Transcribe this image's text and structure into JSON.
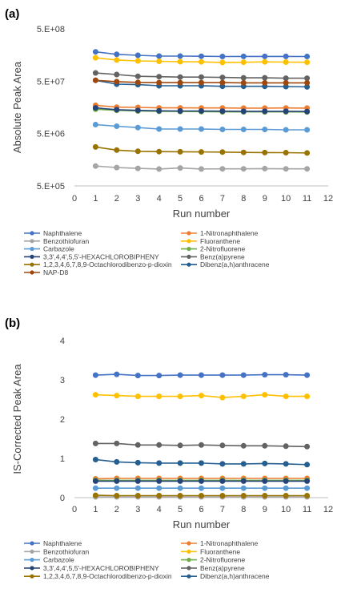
{
  "chart_data": [
    {
      "panel": "(a)",
      "type": "line",
      "xlabel": "Run number",
      "ylabel": "Absolute Peak Area",
      "xlim": [
        0,
        12
      ],
      "x_ticks": [
        "0",
        "1",
        "2",
        "3",
        "4",
        "5",
        "6",
        "7",
        "8",
        "9",
        "10",
        "11",
        "12"
      ],
      "y_scale": "log",
      "ylim": [
        500000,
        500000000
      ],
      "y_ticks": [
        "5.E+05",
        "5.E+06",
        "5.E+07",
        "5.E+08"
      ],
      "y_tick_values": [
        500000,
        5000000,
        50000000,
        500000000
      ],
      "grid": false,
      "legend_position": "bottom",
      "x": [
        1,
        2,
        3,
        4,
        5,
        6,
        7,
        8,
        9,
        10,
        11
      ],
      "series": [
        {
          "name": "Naphthalene",
          "color": "#4472C4",
          "values": [
            182000000,
            163000000,
            156000000,
            151000000,
            151000000,
            150000000,
            148000000,
            149000000,
            149000000,
            149000000,
            148000000
          ]
        },
        {
          "name": "1-Nitronaphthalene",
          "color": "#ED7D31",
          "values": [
            17300000,
            16000000,
            15800000,
            15500000,
            15500000,
            15400000,
            15400000,
            15300000,
            15300000,
            15400000,
            15300000
          ]
        },
        {
          "name": "Benzothiofuran",
          "color": "#A5A5A5",
          "values": [
            1200000,
            1120000,
            1080000,
            1050000,
            1100000,
            1050000,
            1060000,
            1060000,
            1070000,
            1060000,
            1060000
          ]
        },
        {
          "name": "Fluoranthene",
          "color": "#FFC000",
          "values": [
            140000000,
            127000000,
            122000000,
            120000000,
            118000000,
            117000000,
            114000000,
            115000000,
            117000000,
            116000000,
            115000000
          ]
        },
        {
          "name": "Carbazole",
          "color": "#5B9BD5",
          "values": [
            7400000,
            6900000,
            6500000,
            6100000,
            6100000,
            6100000,
            6000000,
            6000000,
            6000000,
            5900000,
            5900000
          ]
        },
        {
          "name": "2-Nitrofluorene",
          "color": "#70AD47",
          "values": [
            14600000,
            13900000,
            13500000,
            13300000,
            13200000,
            13100000,
            13000000,
            13000000,
            13000000,
            13000000,
            12900000
          ]
        },
        {
          "name": "3,3',4,4',5,5'-HEXACHLOROBIPHENY",
          "color": "#264478",
          "values": [
            15500000,
            14300000,
            13900000,
            13600000,
            13500000,
            13500000,
            13400000,
            13300000,
            13300000,
            13300000,
            13200000
          ]
        },
        {
          "name": "Benz(a)pyrene",
          "color": "#636363",
          "values": [
            72000000,
            67000000,
            62000000,
            61000000,
            60000000,
            60000000,
            59000000,
            58000000,
            58000000,
            57000000,
            57000000
          ]
        },
        {
          "name": "1,2,3,4,6,7,8,9-Octachlorodibenzo-p-dioxin",
          "color": "#997300",
          "values": [
            2770000,
            2420000,
            2290000,
            2260000,
            2240000,
            2230000,
            2210000,
            2180000,
            2170000,
            2160000,
            2130000
          ]
        },
        {
          "name": "Dibenz(a,h)anthracene",
          "color": "#255E91",
          "values": [
            52000000,
            44000000,
            43000000,
            41000000,
            41000000,
            41000000,
            40000000,
            40000000,
            40000000,
            39500000,
            39000000
          ]
        },
        {
          "name": "NAP-D8",
          "color": "#9E480E",
          "values": [
            52000000,
            49000000,
            47500000,
            47000000,
            47000000,
            47000000,
            47000000,
            46500000,
            46500000,
            46500000,
            46500000
          ]
        }
      ]
    },
    {
      "panel": "(b)",
      "type": "line",
      "xlabel": "Run number",
      "ylabel": "IS-Corrected Peak Area",
      "xlim": [
        0,
        12
      ],
      "x_ticks": [
        "0",
        "1",
        "2",
        "3",
        "4",
        "5",
        "6",
        "7",
        "8",
        "9",
        "10",
        "11",
        "12"
      ],
      "y_scale": "linear",
      "ylim": [
        0,
        4
      ],
      "y_ticks": [
        "0",
        "1",
        "2",
        "3",
        "4"
      ],
      "y_tick_values": [
        0,
        1,
        2,
        3,
        4
      ],
      "grid": false,
      "legend_position": "bottom",
      "x": [
        1,
        2,
        3,
        4,
        5,
        6,
        7,
        8,
        9,
        10,
        11
      ],
      "series": [
        {
          "name": "Naphthalene",
          "color": "#4472C4",
          "values": [
            3.12,
            3.14,
            3.11,
            3.11,
            3.12,
            3.12,
            3.12,
            3.12,
            3.13,
            3.13,
            3.12
          ]
        },
        {
          "name": "1-Nitronaphthalene",
          "color": "#ED7D31",
          "values": [
            0.48,
            0.49,
            0.49,
            0.49,
            0.49,
            0.49,
            0.49,
            0.49,
            0.49,
            0.49,
            0.49
          ]
        },
        {
          "name": "Benzothiofuran",
          "color": "#A5A5A5",
          "values": [
            0.02,
            0.02,
            0.02,
            0.02,
            0.02,
            0.02,
            0.02,
            0.02,
            0.02,
            0.02,
            0.02
          ]
        },
        {
          "name": "Fluoranthene",
          "color": "#FFC000",
          "values": [
            2.62,
            2.6,
            2.58,
            2.58,
            2.58,
            2.6,
            2.55,
            2.58,
            2.62,
            2.58,
            2.58
          ]
        },
        {
          "name": "Carbazole",
          "color": "#5B9BD5",
          "values": [
            0.24,
            0.24,
            0.24,
            0.24,
            0.24,
            0.24,
            0.24,
            0.24,
            0.24,
            0.24,
            0.24
          ]
        },
        {
          "name": "2-Nitrofluorene",
          "color": "#70AD47",
          "values": [
            0.44,
            0.44,
            0.44,
            0.44,
            0.44,
            0.44,
            0.44,
            0.44,
            0.44,
            0.44,
            0.44
          ]
        },
        {
          "name": "3,3',4,4',5,5'-HEXACHLOROBIPHENY",
          "color": "#264478",
          "values": [
            0.42,
            0.42,
            0.42,
            0.42,
            0.42,
            0.42,
            0.42,
            0.42,
            0.42,
            0.42,
            0.42
          ]
        },
        {
          "name": "Benz(a)pyrene",
          "color": "#636363",
          "values": [
            1.38,
            1.38,
            1.34,
            1.34,
            1.33,
            1.34,
            1.33,
            1.32,
            1.32,
            1.31,
            1.3
          ]
        },
        {
          "name": "1,2,3,4,6,7,8,9-Octachlorodibenzo-p-dioxin",
          "color": "#997300",
          "values": [
            0.06,
            0.05,
            0.05,
            0.05,
            0.05,
            0.05,
            0.05,
            0.05,
            0.05,
            0.05,
            0.05
          ]
        },
        {
          "name": "Dibenz(a,h)anthracene",
          "color": "#255E91",
          "values": [
            0.97,
            0.91,
            0.89,
            0.88,
            0.88,
            0.88,
            0.86,
            0.86,
            0.87,
            0.86,
            0.84
          ]
        }
      ]
    }
  ]
}
